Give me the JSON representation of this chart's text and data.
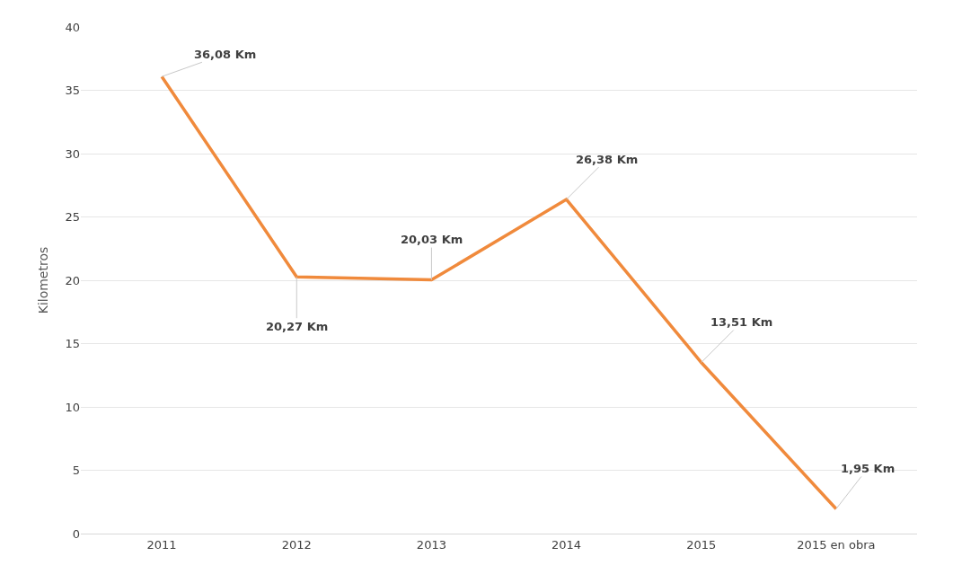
{
  "chart_data": {
    "type": "line",
    "ylabel": "Kilometros",
    "categories": [
      "2011",
      "2012",
      "2013",
      "2014",
      "2015",
      "2015 en obra"
    ],
    "series": [
      {
        "color": "#f08a3c",
        "values": [
          36.08,
          20.27,
          20.03,
          26.38,
          13.51,
          1.95
        ],
        "value_labels": [
          "36,08 Km",
          "20,27 Km",
          "20,03 Km",
          "26,38 Km",
          "13,51 Km",
          "1,95 Km"
        ]
      }
    ],
    "ylim": [
      0,
      40
    ],
    "yticks": [
      0,
      5,
      10,
      15,
      20,
      25,
      30,
      35,
      40
    ],
    "grid": "y",
    "marker": "none",
    "line_style": "solid"
  }
}
